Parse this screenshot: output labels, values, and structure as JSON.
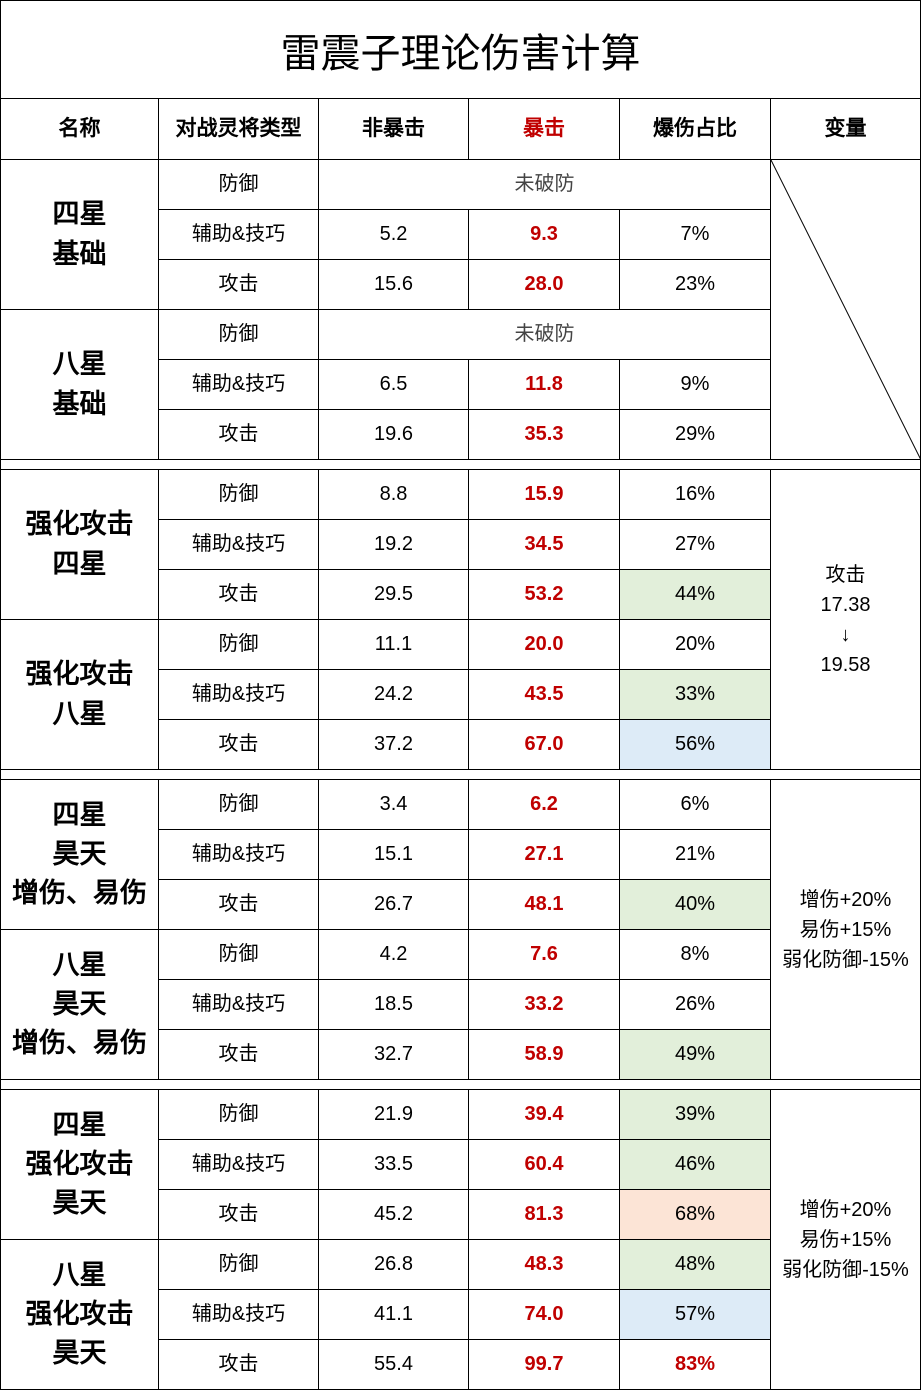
{
  "title": "雷震子理论伤害计算",
  "headers": {
    "name": "名称",
    "type": "对战灵将类型",
    "noncrit": "非暴击",
    "crit": "暴击",
    "ratio": "爆伤占比",
    "var": "变量"
  },
  "groups": [
    {
      "name": "四星\n基础",
      "rows": [
        {
          "type": "防御",
          "merged": "未破防"
        },
        {
          "type": "辅助&技巧",
          "noncrit": "5.2",
          "crit": "9.3",
          "ratio": "7%"
        },
        {
          "type": "攻击",
          "noncrit": "15.6",
          "crit": "28.0",
          "ratio": "23%"
        }
      ]
    },
    {
      "name": "八星\n基础",
      "rows": [
        {
          "type": "防御",
          "merged": "未破防"
        },
        {
          "type": "辅助&技巧",
          "noncrit": "6.5",
          "crit": "11.8",
          "ratio": "9%"
        },
        {
          "type": "攻击",
          "noncrit": "19.6",
          "crit": "35.3",
          "ratio": "29%"
        }
      ]
    },
    {
      "name": "强化攻击\n四星",
      "rows": [
        {
          "type": "防御",
          "noncrit": "8.8",
          "crit": "15.9",
          "ratio": "16%"
        },
        {
          "type": "辅助&技巧",
          "noncrit": "19.2",
          "crit": "34.5",
          "ratio": "27%"
        },
        {
          "type": "攻击",
          "noncrit": "29.5",
          "crit": "53.2",
          "ratio": "44%",
          "highlight": "green"
        }
      ]
    },
    {
      "name": "强化攻击\n八星",
      "rows": [
        {
          "type": "防御",
          "noncrit": "11.1",
          "crit": "20.0",
          "ratio": "20%"
        },
        {
          "type": "辅助&技巧",
          "noncrit": "24.2",
          "crit": "43.5",
          "ratio": "33%",
          "highlight": "green"
        },
        {
          "type": "攻击",
          "noncrit": "37.2",
          "crit": "67.0",
          "ratio": "56%",
          "highlight": "blue"
        }
      ]
    },
    {
      "name": "四星\n昊天\n增伤、易伤",
      "rows": [
        {
          "type": "防御",
          "noncrit": "3.4",
          "crit": "6.2",
          "ratio": "6%"
        },
        {
          "type": "辅助&技巧",
          "noncrit": "15.1",
          "crit": "27.1",
          "ratio": "21%"
        },
        {
          "type": "攻击",
          "noncrit": "26.7",
          "crit": "48.1",
          "ratio": "40%",
          "highlight": "green"
        }
      ]
    },
    {
      "name": "八星\n昊天\n增伤、易伤",
      "rows": [
        {
          "type": "防御",
          "noncrit": "4.2",
          "crit": "7.6",
          "ratio": "8%"
        },
        {
          "type": "辅助&技巧",
          "noncrit": "18.5",
          "crit": "33.2",
          "ratio": "26%"
        },
        {
          "type": "攻击",
          "noncrit": "32.7",
          "crit": "58.9",
          "ratio": "49%",
          "highlight": "green"
        }
      ]
    },
    {
      "name": "四星\n强化攻击\n昊天",
      "rows": [
        {
          "type": "防御",
          "noncrit": "21.9",
          "crit": "39.4",
          "ratio": "39%",
          "highlight": "green"
        },
        {
          "type": "辅助&技巧",
          "noncrit": "33.5",
          "crit": "60.4",
          "ratio": "46%",
          "highlight": "green"
        },
        {
          "type": "攻击",
          "noncrit": "45.2",
          "crit": "81.3",
          "ratio": "68%",
          "highlight": "peach"
        }
      ]
    },
    {
      "name": "八星\n强化攻击\n昊天",
      "rows": [
        {
          "type": "防御",
          "noncrit": "26.8",
          "crit": "48.3",
          "ratio": "48%",
          "highlight": "green"
        },
        {
          "type": "辅助&技巧",
          "noncrit": "41.1",
          "crit": "74.0",
          "ratio": "57%",
          "highlight": "blue"
        },
        {
          "type": "攻击",
          "noncrit": "55.4",
          "crit": "99.7",
          "ratio": "83%",
          "ratio_red": true
        }
      ]
    }
  ],
  "variables": [
    "",
    "攻击\n17.38\n↓\n19.58",
    "增伤+20%\n易伤+15%\n弱化防御-15%",
    "增伤+20%\n易伤+15%\n弱化防御-15%"
  ],
  "colors": {
    "green": "#e2efda",
    "blue": "#ddebf7",
    "peach": "#fce4d6",
    "crit_red": "#c00000"
  }
}
